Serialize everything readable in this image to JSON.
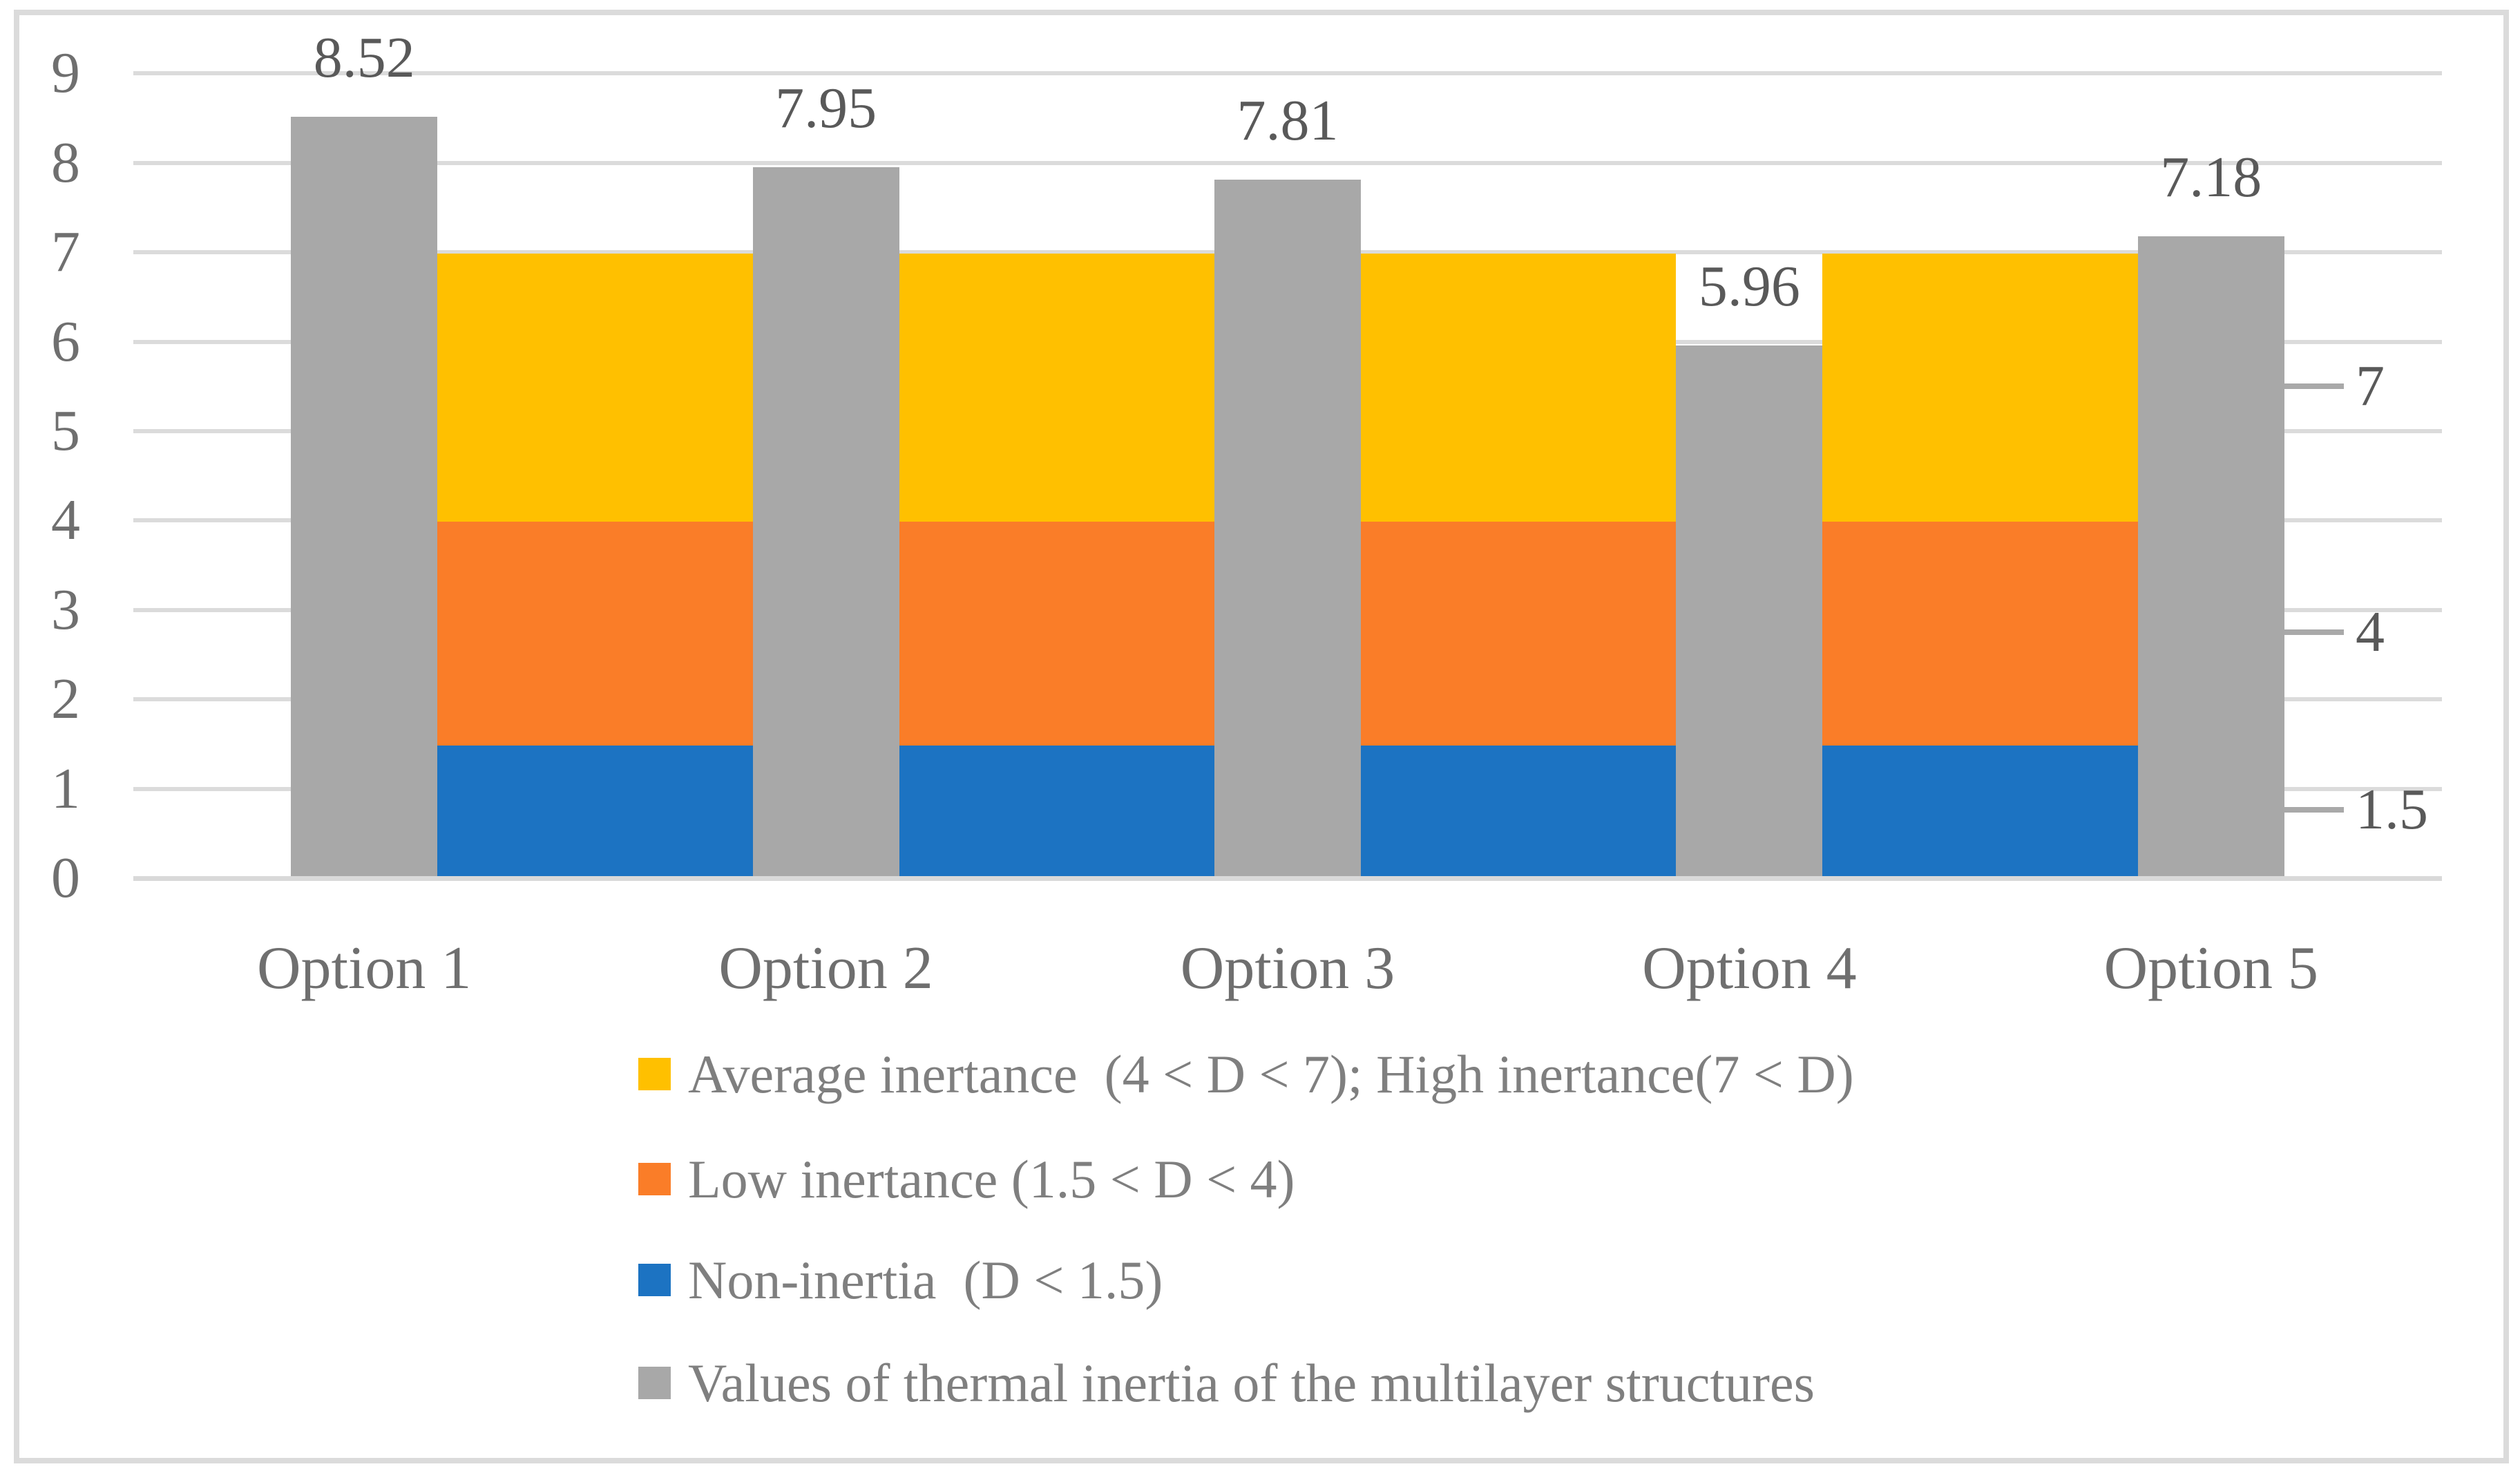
{
  "colors": {
    "band_high": "#FFC000",
    "band_low": "#FA7D28",
    "band_non": "#1C73C2",
    "bar_gray": "#A8A8A8",
    "gridline": "#DBDBDB",
    "axis_line": "#D9D9D9",
    "tick_dash": "#A9A9A9",
    "tick_text": "#6F6F6F",
    "value_text": "#595959",
    "legend_text": "#7F7F7F"
  },
  "y_axis": {
    "ticks": [
      "9",
      "8",
      "7",
      "6",
      "5",
      "4",
      "3",
      "2",
      "1",
      "0"
    ],
    "tick_values": [
      9,
      8,
      7,
      6,
      5,
      4,
      3,
      2,
      1,
      0
    ]
  },
  "x_axis": {
    "categories": [
      "Option 1",
      "Option 2",
      "Option 3",
      "Option 4",
      "Option 5"
    ]
  },
  "bars": [
    {
      "label": "8.52",
      "value": 8.52
    },
    {
      "label": "7.95",
      "value": 7.95
    },
    {
      "label": "7.81",
      "value": 7.81
    },
    {
      "label": "5.96",
      "value": 5.96
    },
    {
      "label": "7.18",
      "value": 7.18
    }
  ],
  "right_axis": {
    "labels": [
      {
        "text": "7",
        "band_index": 2
      },
      {
        "text": "4",
        "band_index": 1
      },
      {
        "text": "1.5",
        "band_index": 0
      }
    ]
  },
  "legend": {
    "items": [
      {
        "label": "Average inertance  (4 < D < 7); High inertance(7 < D)",
        "color": "#FFC000"
      },
      {
        "label": "Low inertance (1.5 < D < 4)",
        "color": "#FA7D28"
      },
      {
        "label": "Non-inertia  (D < 1.5)",
        "color": "#1C73C2"
      },
      {
        "label": "Values of thermal inertia of the multilayer structures",
        "color": "#A8A8A8"
      }
    ]
  },
  "chart_data": {
    "type": "bar",
    "categories": [
      "Option 1",
      "Option 2",
      "Option 3",
      "Option 4",
      "Option 5"
    ],
    "series": [
      {
        "name": "Values of thermal inertia of the multilayer structures",
        "values": [
          8.52,
          7.95,
          7.81,
          5.96,
          7.18
        ],
        "color": "#A8A8A8",
        "data_labels": [
          "8.52",
          "7.95",
          "7.81",
          "5.96",
          "7.18"
        ]
      }
    ],
    "background_bands": [
      {
        "name": "Non-inertia  (D < 1.5)",
        "from": 0,
        "to": 1.5,
        "color": "#1C73C2"
      },
      {
        "name": "Low inertance (1.5 < D < 4)",
        "from": 1.5,
        "to": 4,
        "color": "#FA7D28"
      },
      {
        "name": "Average inertance  (4 < D < 7); High inertance(7 < D)",
        "from": 4,
        "to": 7,
        "color": "#FFC000"
      }
    ],
    "title": "",
    "xlabel": "",
    "ylabel": "",
    "ylim": [
      0,
      9
    ],
    "y_ticks": [
      0,
      1,
      2,
      3,
      4,
      5,
      6,
      7,
      8,
      9
    ],
    "right_axis_band_labels": [
      "7",
      "4",
      "1.5"
    ],
    "grid": true,
    "legend_position": "bottom"
  }
}
